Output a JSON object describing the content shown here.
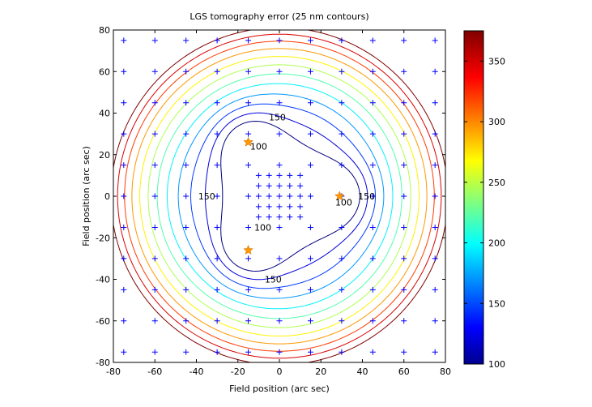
{
  "chart_data": {
    "type": "contour",
    "title": "LGS tomography error (25 nm contours)",
    "xlabel": "Field position (arc sec)",
    "ylabel": "Field position (arc sec)",
    "xlim": [
      -80,
      80
    ],
    "ylim": [
      -80,
      80
    ],
    "xticks": [
      -80,
      -60,
      -40,
      -20,
      0,
      20,
      40,
      60,
      80
    ],
    "yticks": [
      -80,
      -60,
      -40,
      -20,
      0,
      20,
      40,
      60,
      80
    ],
    "grid": false,
    "contour_levels": [
      100,
      125,
      150,
      175,
      200,
      225,
      250,
      275,
      300,
      325,
      350,
      375
    ],
    "contour_labels": [
      {
        "text": "150",
        "x": -1,
        "y": 38
      },
      {
        "text": "100",
        "x": -10,
        "y": 24
      },
      {
        "text": "150",
        "x": -35,
        "y": 0
      },
      {
        "text": "100",
        "x": 31,
        "y": -3
      },
      {
        "text": "150",
        "x": 42,
        "y": 0
      },
      {
        "text": "100",
        "x": -8,
        "y": -15
      },
      {
        "text": "150",
        "x": -3,
        "y": -40
      }
    ],
    "lgs_stars": [
      {
        "x": -15,
        "y": 26
      },
      {
        "x": 29,
        "y": 0
      },
      {
        "x": -15,
        "y": -26
      }
    ],
    "grid_points_x": [
      -75,
      -60,
      -45,
      -30,
      -15,
      0,
      15,
      30,
      45,
      60,
      75
    ],
    "grid_points_y": [
      -75,
      -60,
      -45,
      -30,
      -15,
      0,
      15,
      30,
      45,
      60,
      75
    ],
    "center_points_x": [
      -10,
      -5,
      0,
      5,
      10
    ],
    "center_points_y": [
      -10,
      -5,
      0,
      5,
      10
    ],
    "colorbar": {
      "min": 100,
      "max": 375,
      "ticks": [
        100,
        150,
        200,
        250,
        300,
        350
      ],
      "colormap": "jet"
    },
    "colors": {
      "marker": "#0000ff",
      "star": "#ff9900",
      "axes": "#000000"
    }
  }
}
